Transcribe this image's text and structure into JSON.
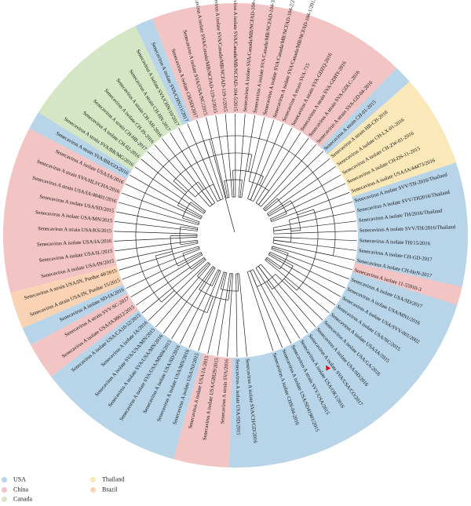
{
  "tree": {
    "labels": [
      "Senecavirus A isolate CHN-04-2016",
      "Senecavirus A isolate USA/SD41901/2015",
      "Senecavirus A strain SVV/USA/2015",
      "Senecavirus A isolate USA/OK1/2016",
      "Senecavirus A isolate SVA/USA/CO/2017",
      "Senecavirus A isolate USA/SD/2016",
      "Senecavirus A isolate USA/GA/2016",
      "Senecavirus A isolate USA/IA/2015",
      "Senecavirus A isolate USA/NC/2015",
      "Senecavirus A isolate USA/SVV-001/2002",
      "Senecavirus A isolate USA/MN1/2016",
      "Senecavirus A isolate USA/SD/2017",
      "Senecavirus A isolate 11-55910-3",
      "Senecavirus A isolate CH-HeN-2017",
      "Senecavirus A isolate CH-GD-2017",
      "Senecavirus A isolate TH/15/2016",
      "Senecavirus A isolate SVV/TH/2016/Thailand",
      "Senecavirus A isolate TH/2016/Thailand",
      "Senecavirus A isolate SVV/TH2016/Thailand",
      "Senecavirus A isolate SVV/TH-2016/Thailand",
      "Senecavirus A isolate USA/IA/44473/2016",
      "Senecavirus A isolate CH-DS-11-2015",
      "Senecavirus A isolate CH-ZW-01-2016",
      "Senecavirus A isolate CH-LX-01-2016",
      "Senecavirus A strain HB-CH-2016",
      "Senecavirus A strain CH-01-2015",
      "Senecavirus A strain SVA-GD-04-2016",
      "Senecavirus A strain SVA-GDLC-2016",
      "Senecavirus A strain SVA-GDHY-2016",
      "Senecavirus A strain SVA-GDZQ-2016",
      "Senecavirus A strain SVA-715",
      "Senecavirus A isolate SVA/Canada/MB/NCFAD-104-1/2015",
      "Senecavirus A isolate SVA/Canada/MB/NCFAD-104-2/2015",
      "Senecavirus A isolate SVA/Canada/MB/NCFAD-104-3/2015",
      "Senecavirus A isolate SVA/Canada/MB/NCFAD-104-4/2015",
      "Senecavirus A isolate SVA/Canada/MB/NCFAD-104-5/2015",
      "Senecavirus A isolate SVA/Canada/MB/NCFAD-119-1/2015",
      "Senecavirus A isolate SVA/Canada/MB/NCFAD-119-2/2015",
      "Senecavirus A isolate SVA/USA/NC/2015",
      "Senecavirus A isolate CH/SD/2017",
      "Senecavirus A isolate SVA/CHN/11/2017",
      "Senecavirus A isolate SVA/CHN/10/2017",
      "Senecavirus A strain CH-HN-2017",
      "Senecavirus A strain CH-AH-2016",
      "Senecavirus A isolate CH-JS-2016",
      "Senecavirus A strain CH-HB-2017",
      "Senecavirus A isolate CH-02-2016",
      "Senecavirus A strain SVA/BR/MG/2016",
      "Senecavirus A strain SVA/BR/GO/2016",
      "Senecavirus A isolate USA/IA/2016",
      "Senecavirus A strain SVA/HLJ/CHA/2016",
      "Senecavirus A strain USA/IA/40401/2016",
      "Senecavirus A isolate USA/SD/2015",
      "Senecavirus A isolate USA/MN/2015",
      "Senecavirus A strain USA/KS/2015",
      "Senecavirus A isolate USA/IA/2016",
      "Senecavirus A isolate USA/IL/2015",
      "Senecavirus A isolate USA/IN/2015",
      "Senecavirus A strain USA/IN, Purdue 40/2015",
      "Senecavirus A strain USA/IN, Purdue 15/2015",
      "Senecavirus A isolate SD-IA/2016",
      "Senecavirus A strain SVV-SC-2017",
      "Senecavirus A isolate USA/IA38612/2015",
      "Senecavirus A isolate USA/CA10-52/2015",
      "Senecavirus A isolate IA/2016",
      "Senecavirus A isolate SVA/USA/MN/2015",
      "Senecavirus A isolate SVA/USA/MN/2016",
      "Senecavirus A isolate SVA/USA/MN04/2015",
      "Senecavirus A isolate USA/SD/2016",
      "Senecavirus A isolate USA/MN/2016",
      "Senecavirus A isolate USA/NJ/2015",
      "Senecavirus A isolate USA/IA/2015",
      "Senecavirus A isolate USA/GBI29/2015",
      "Senecavirus A strain SVA/2016",
      "Senecavirus A isolate USA/SD/2015",
      "Senecavirus A isolate SVA/CH/GD/2016"
    ]
  },
  "legend": {
    "items": [
      {
        "label": "USA",
        "color": "#b8d4e8"
      },
      {
        "label": "China",
        "color": "#f2c4c4"
      },
      {
        "label": "Canada",
        "color": "#d5e6c4"
      },
      {
        "label": "Thailand",
        "color": "#fae8b8"
      },
      {
        "label": "Brazil",
        "color": "#fad3b4"
      }
    ]
  },
  "sectors": [
    {
      "country": "China",
      "start": 0.0,
      "end": 1.0
    },
    {
      "country": "USA",
      "start": 1.0,
      "end": 20.0
    },
    {
      "country": "Thailand",
      "start": 20.0,
      "end": 25.0
    },
    {
      "country": "USA",
      "start": 25.0,
      "end": 26.0
    },
    {
      "country": "China",
      "start": 26.0,
      "end": 40.0
    },
    {
      "country": "USA",
      "start": 40.0,
      "end": 41.0
    },
    {
      "country": "Canada",
      "start": 41.0,
      "end": 48.0
    },
    {
      "country": "USA",
      "start": 48.0,
      "end": 49.0
    },
    {
      "country": "China",
      "start": 49.0,
      "end": 58.0
    },
    {
      "country": "Brazil",
      "start": 58.0,
      "end": 60.0
    },
    {
      "country": "USA",
      "start": 60.0,
      "end": 61.0
    },
    {
      "country": "China",
      "start": 61.0,
      "end": 63.0
    },
    {
      "country": "USA",
      "start": 63.0,
      "end": 71.0
    },
    {
      "country": "China",
      "start": 71.0,
      "end": 74.0
    },
    {
      "country": "USA",
      "start": 74.0,
      "end": 80.0
    },
    {
      "country": "none",
      "start": 80.0,
      "end": 81.0
    },
    {
      "country": "USA",
      "start": 81.0,
      "end": 90.0
    },
    {
      "country": "China",
      "start": 90.0,
      "end": 91.0
    }
  ],
  "marker": {
    "symbol": "▲",
    "color": "#e60000"
  }
}
